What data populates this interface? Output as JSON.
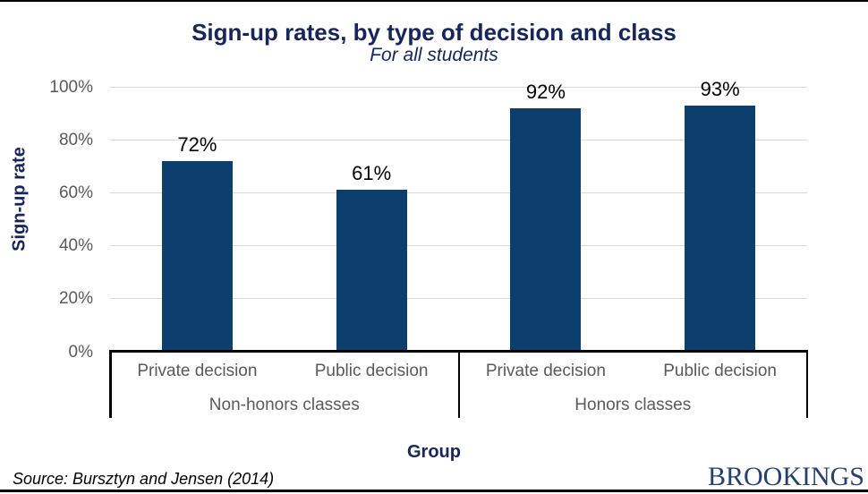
{
  "page": {
    "title": "Sign-up rates, by type of decision and class",
    "subtitle": "For all students",
    "source": "Source: Bursztyn and Jensen (2014)",
    "brand": "BROOKINGS"
  },
  "colors": {
    "bar": "#0d3f6e",
    "title_navy": "#17255a",
    "axis_text_gray": "#595959",
    "gridline_gray": "#d9d9d9",
    "brand_navy": "#26406d",
    "axis_black": "#000000"
  },
  "chart_data": {
    "type": "bar",
    "title": "Sign-up rates, by type of decision and class",
    "subtitle": "For all students",
    "ylabel": "Sign-up rate",
    "xlabel": "Group",
    "ylim": [
      0,
      100
    ],
    "ytick_interval": 20,
    "ytick_labels": [
      "0%",
      "20%",
      "40%",
      "60%",
      "80%",
      "100%"
    ],
    "grid": true,
    "legend": "none",
    "groups": [
      {
        "label": "Non-honors classes",
        "bars": [
          {
            "category": "Private decision",
            "value": 72,
            "value_label": "72%"
          },
          {
            "category": "Public decision",
            "value": 61,
            "value_label": "61%"
          }
        ]
      },
      {
        "label": "Honors classes",
        "bars": [
          {
            "category": "Private decision",
            "value": 92,
            "value_label": "92%"
          },
          {
            "category": "Public decision",
            "value": 93,
            "value_label": "93%"
          }
        ]
      }
    ]
  }
}
